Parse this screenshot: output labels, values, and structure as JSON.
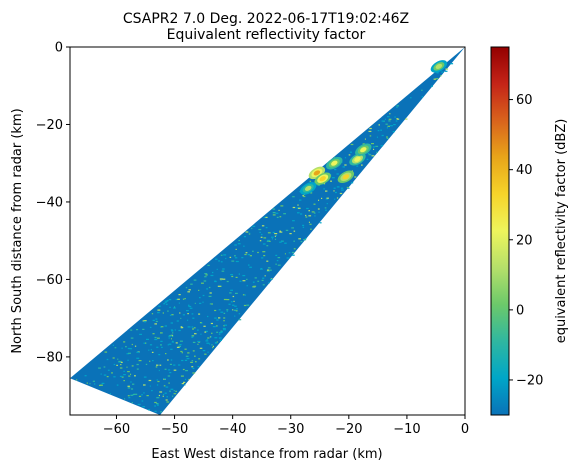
{
  "chart_data": {
    "type": "heatmap",
    "title_line1": "CSAPR2 7.0 Deg. 2022-06-17T19:02:46Z",
    "title_line2": "Equivalent reflectivity factor",
    "xlabel": "East West distance from radar (km)",
    "ylabel": "North South distance from radar (km)",
    "xlim": [
      -68,
      0
    ],
    "ylim": [
      -95,
      0
    ],
    "xticks": [
      -60,
      -50,
      -40,
      -30,
      -20,
      -10,
      0
    ],
    "xtick_labels": [
      "−60",
      "−50",
      "−40",
      "−30",
      "−20",
      "−10",
      "0"
    ],
    "yticks": [
      0,
      -20,
      -40,
      -60,
      -80
    ],
    "ytick_labels": [
      "0",
      "−20",
      "−40",
      "−60",
      "−80"
    ],
    "sector_vertices_km": [
      [
        0,
        0
      ],
      [
        -68,
        -85.5
      ],
      [
        -52.5,
        -95
      ]
    ],
    "background_dbz": -25,
    "echo_cells": [
      {
        "x": -25.5,
        "y": -32.5,
        "dbz": 40
      },
      {
        "x": -24.5,
        "y": -34.0,
        "dbz": 35
      },
      {
        "x": -20.5,
        "y": -33.5,
        "dbz": 32
      },
      {
        "x": -18.5,
        "y": -29.0,
        "dbz": 25
      },
      {
        "x": -17.5,
        "y": -26.5,
        "dbz": 18
      },
      {
        "x": -22.5,
        "y": -30.0,
        "dbz": 20
      },
      {
        "x": -27.0,
        "y": -36.5,
        "dbz": 10
      },
      {
        "x": -4.5,
        "y": -5.0,
        "dbz": 12
      }
    ],
    "colorbar": {
      "label": "equivalent reflectivity factor (dBZ)",
      "vmin": -30,
      "vmax": 75,
      "ticks": [
        -20,
        0,
        20,
        40,
        60
      ],
      "tick_labels": [
        "−20",
        "0",
        "20",
        "40",
        "60"
      ],
      "colors": [
        "#0a72b8",
        "#00a6c8",
        "#2fb7a0",
        "#6cc96a",
        "#b5e06a",
        "#eef55c",
        "#f6d42a",
        "#e8a51a",
        "#d9631c",
        "#c42418",
        "#930000"
      ]
    }
  }
}
